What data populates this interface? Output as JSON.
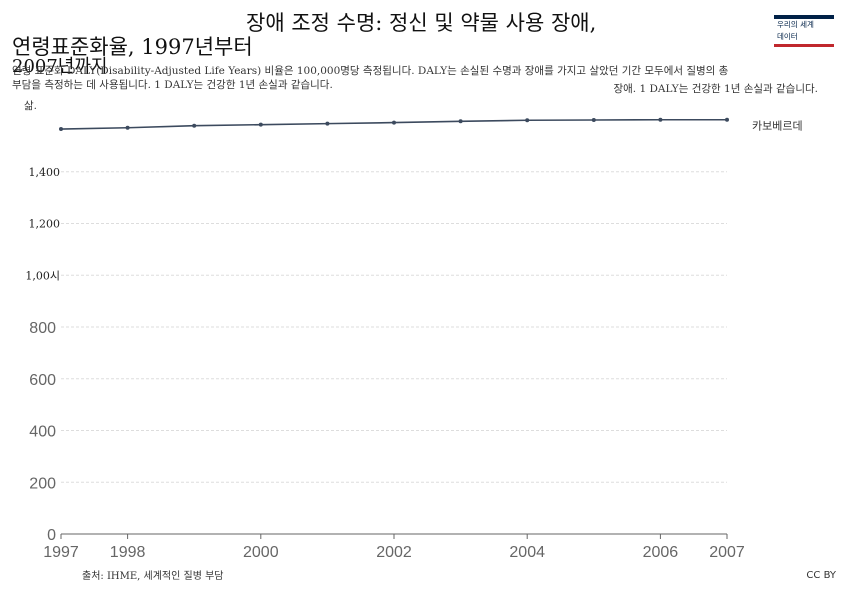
{
  "header": {
    "title_line_1": "장애 조정 수명: 정신 및 약물 사용 장애,",
    "title_line_2": "연령표준화율, 1997년부터",
    "title_line_3": "2007년까지",
    "subtitle_line_1": "연령 표준화 DALY(Disability-Adjusted Life Years) 비율은 100,000명당 측정됩니다. DALY는 손실된 수명과 장애를 가지고 살았던 기간 모두에서 질병의 총",
    "subtitle_line_2": "부담을 측정하는 데 사용됩니다. 1 DALY는 건강한 1년 손실과 같습니다.",
    "subtitle_line_3": "장애. 1 DALY는 건강한 1년 손실과 같습니다.",
    "unit_label": "삶."
  },
  "logo": {
    "line_1": "우리의 세계",
    "line_2": "데이터"
  },
  "footer": {
    "source": "출처: IHME, 세계적인 질병 부담",
    "license": "CC BY"
  },
  "colors": {
    "series": "#3c4a5e",
    "grid": "#dddddd",
    "axis": "#666666"
  },
  "chart_data": {
    "type": "line",
    "x": [
      1997,
      1998,
      1999,
      2000,
      2001,
      2002,
      2003,
      2004,
      2005,
      2006,
      2007
    ],
    "series": [
      {
        "name": "카보베르데",
        "values": [
          1565,
          1570,
          1578,
          1582,
          1586,
          1590,
          1595,
          1599,
          1600,
          1601,
          1601
        ]
      }
    ],
    "xlim": [
      1997,
      2007
    ],
    "ylim": [
      0,
      1600
    ],
    "x_ticks": [
      1997,
      1998,
      2000,
      2002,
      2004,
      2006,
      2007
    ],
    "y_ticks": [
      0,
      200,
      400,
      600,
      800,
      1000,
      1200,
      1400
    ],
    "y_tick_labels": [
      "0",
      "200",
      "400",
      "600",
      "800",
      "1,00시",
      "1,200",
      "1,400"
    ],
    "grid": "horizontal-dashed",
    "legend": "right-end-label"
  }
}
